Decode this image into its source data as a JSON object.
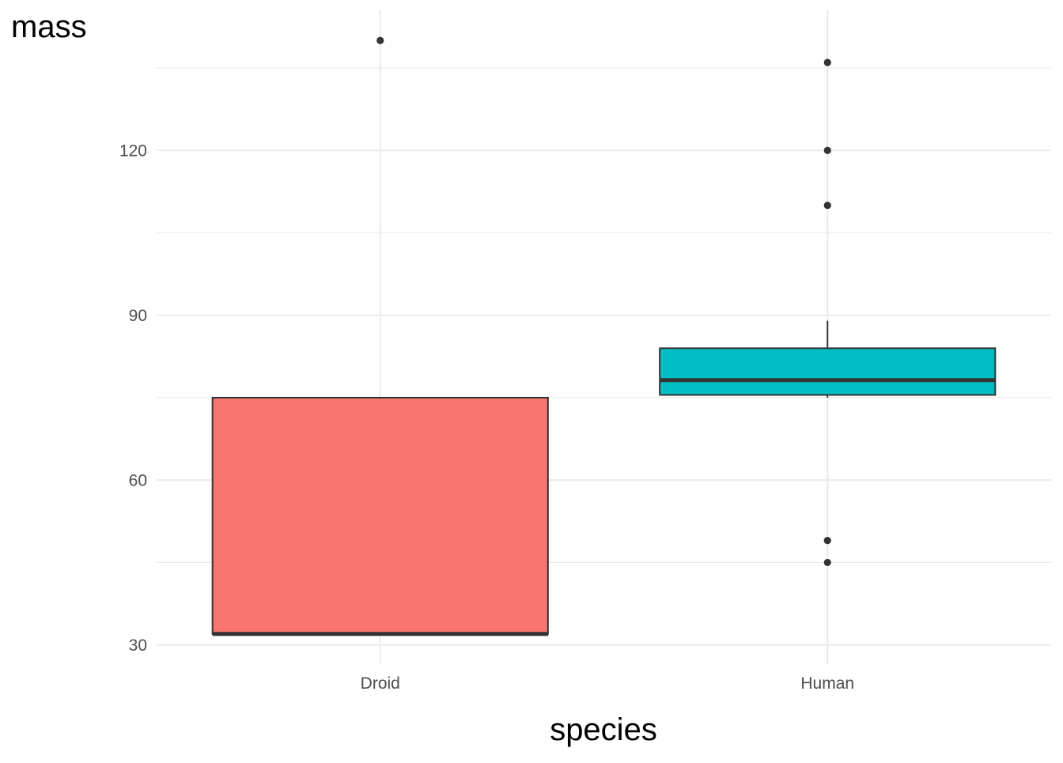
{
  "chart_data": {
    "type": "boxplot",
    "title": "",
    "xlabel": "species",
    "ylabel": "mass",
    "categories": [
      "Droid",
      "Human"
    ],
    "ylim": [
      26.5,
      145.5
    ],
    "y_ticks": [
      30,
      60,
      90,
      120
    ],
    "y_tick_labels": [
      "30",
      "60",
      "90",
      "120"
    ],
    "grid": true,
    "legend": "none",
    "boxes": [
      {
        "category": "Droid",
        "fill": "#F8766D",
        "whisker_low": 32,
        "q1": 32,
        "median": 32,
        "q3": 75,
        "whisker_high": 75,
        "outliers": [
          140
        ]
      },
      {
        "category": "Human",
        "fill": "#00BFC4",
        "whisker_low": 75,
        "q1": 75.5,
        "median": 78.2,
        "q3": 84,
        "whisker_high": 89,
        "outliers": [
          136,
          120,
          110,
          49,
          45
        ]
      }
    ]
  }
}
